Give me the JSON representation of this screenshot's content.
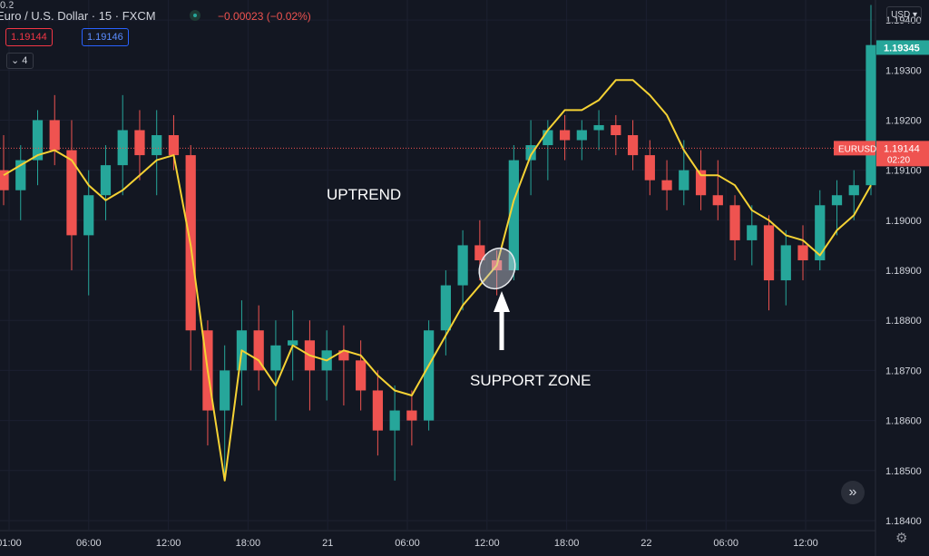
{
  "header": {
    "symbol": "Euro / U.S. Dollar · 15 · FXCM",
    "change": "−0.00023 (−0.02%)",
    "bid": "1.19144",
    "spread": "0.2",
    "ask": "1.19146",
    "indicators_count": "4",
    "currency": "USD"
  },
  "controls": {
    "scroll_icon": "»",
    "settings_icon": "gear-icon"
  },
  "colors": {
    "up": "#26a69a",
    "down": "#ef5350",
    "ma": "#f5d234",
    "bg": "#131722",
    "grid": "#1c2030",
    "text": "#d1d4dc",
    "last": "#26a69a",
    "current": "#ef5350"
  },
  "chart_data": {
    "type": "candlestick",
    "symbol": "EURUSD",
    "ylim": [
      1.1838,
      1.1944
    ],
    "y_ticks": [
      "1.19400",
      "1.19300",
      "1.19200",
      "1.19100",
      "1.19000",
      "1.18900",
      "1.18800",
      "1.18700",
      "1.18600",
      "1.18500",
      "1.18400"
    ],
    "x_ticks": [
      "01:00",
      "06:00",
      "12:00",
      "18:00",
      "21",
      "06:00",
      "12:00",
      "18:00",
      "22",
      "06:00",
      "12:00"
    ],
    "last_price": "1.19345",
    "current_price": "1.19144",
    "current_label": "EURUSD",
    "countdown": "02:20",
    "annotations": [
      "UPTREND",
      "SUPPORT ZONE"
    ],
    "ma": [
      1.1909,
      1.1911,
      1.1913,
      1.1914,
      1.1912,
      1.1907,
      1.1904,
      1.1906,
      1.1909,
      1.1912,
      1.1913,
      1.1895,
      1.187,
      1.1848,
      1.1874,
      1.1872,
      1.1867,
      1.1875,
      1.1873,
      1.1872,
      1.1874,
      1.1873,
      1.1869,
      1.1866,
      1.1865,
      1.1871,
      1.1877,
      1.1883,
      1.1887,
      1.1891,
      1.1904,
      1.1913,
      1.1918,
      1.1922,
      1.1922,
      1.1924,
      1.1928,
      1.1928,
      1.1925,
      1.1921,
      1.1914,
      1.1909,
      1.1909,
      1.1907,
      1.1902,
      1.19,
      1.1897,
      1.1896,
      1.1893,
      1.1898,
      1.1901,
      1.1907
    ],
    "candles": [
      [
        1.191,
        1.1917,
        1.1903,
        1.1906
      ],
      [
        1.1906,
        1.1915,
        1.19,
        1.1912
      ],
      [
        1.1912,
        1.1922,
        1.1907,
        1.192
      ],
      [
        1.192,
        1.1925,
        1.1911,
        1.1914
      ],
      [
        1.1914,
        1.192,
        1.189,
        1.1897
      ],
      [
        1.1897,
        1.191,
        1.1885,
        1.1905
      ],
      [
        1.1905,
        1.1915,
        1.19,
        1.1911
      ],
      [
        1.1911,
        1.1925,
        1.1905,
        1.1918
      ],
      [
        1.1918,
        1.1922,
        1.1908,
        1.1913
      ],
      [
        1.1913,
        1.1922,
        1.1905,
        1.1917
      ],
      [
        1.1917,
        1.1921,
        1.191,
        1.1913
      ],
      [
        1.1913,
        1.1915,
        1.187,
        1.1878
      ],
      [
        1.1878,
        1.188,
        1.1855,
        1.1862
      ],
      [
        1.1862,
        1.1875,
        1.1848,
        1.187
      ],
      [
        1.187,
        1.1884,
        1.1863,
        1.1878
      ],
      [
        1.1878,
        1.1883,
        1.1866,
        1.187
      ],
      [
        1.187,
        1.188,
        1.186,
        1.1875
      ],
      [
        1.1875,
        1.1882,
        1.1868,
        1.1876
      ],
      [
        1.1876,
        1.188,
        1.1862,
        1.187
      ],
      [
        1.187,
        1.1878,
        1.1864,
        1.1874
      ],
      [
        1.1874,
        1.1879,
        1.1863,
        1.1872
      ],
      [
        1.1872,
        1.1876,
        1.1862,
        1.1866
      ],
      [
        1.1866,
        1.187,
        1.1853,
        1.1858
      ],
      [
        1.1858,
        1.1867,
        1.1848,
        1.1862
      ],
      [
        1.1862,
        1.1866,
        1.1855,
        1.186
      ],
      [
        1.186,
        1.188,
        1.1858,
        1.1878
      ],
      [
        1.1878,
        1.189,
        1.1873,
        1.1887
      ],
      [
        1.1887,
        1.1898,
        1.1882,
        1.1895
      ],
      [
        1.1895,
        1.19,
        1.1888,
        1.1892
      ],
      [
        1.1892,
        1.1894,
        1.1885,
        1.189
      ],
      [
        1.189,
        1.1915,
        1.1888,
        1.1912
      ],
      [
        1.1912,
        1.192,
        1.1905,
        1.1915
      ],
      [
        1.1915,
        1.192,
        1.1908,
        1.1918
      ],
      [
        1.1918,
        1.1921,
        1.1912,
        1.1916
      ],
      [
        1.1916,
        1.192,
        1.1912,
        1.1918
      ],
      [
        1.1918,
        1.1922,
        1.1914,
        1.1919
      ],
      [
        1.1919,
        1.1921,
        1.1913,
        1.1917
      ],
      [
        1.1917,
        1.192,
        1.191,
        1.1913
      ],
      [
        1.1913,
        1.1916,
        1.1905,
        1.1908
      ],
      [
        1.1908,
        1.1912,
        1.1902,
        1.1906
      ],
      [
        1.1906,
        1.1916,
        1.1903,
        1.191
      ],
      [
        1.191,
        1.1914,
        1.1902,
        1.1905
      ],
      [
        1.1905,
        1.1912,
        1.19,
        1.1903
      ],
      [
        1.1903,
        1.1905,
        1.1892,
        1.1896
      ],
      [
        1.1896,
        1.1903,
        1.1891,
        1.1899
      ],
      [
        1.1899,
        1.1901,
        1.1882,
        1.1888
      ],
      [
        1.1888,
        1.1898,
        1.1883,
        1.1895
      ],
      [
        1.1895,
        1.1899,
        1.1888,
        1.1892
      ],
      [
        1.1892,
        1.1906,
        1.189,
        1.1903
      ],
      [
        1.1903,
        1.1908,
        1.1897,
        1.1905
      ],
      [
        1.1905,
        1.191,
        1.19,
        1.1907
      ],
      [
        1.1907,
        1.1943,
        1.1905,
        1.1935
      ]
    ]
  }
}
